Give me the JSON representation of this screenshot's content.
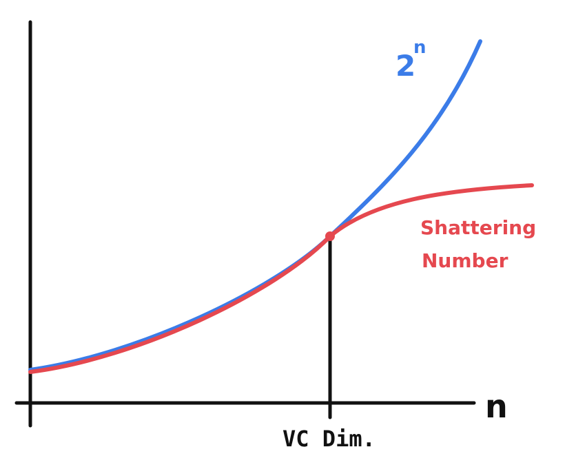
{
  "labels": {
    "x_axis": "n",
    "vc_dim": "VC Dim.",
    "exp_base": "2",
    "exp_power": "n",
    "shattering_line1": "Shattering",
    "shattering_line2": "Number"
  },
  "colors": {
    "axis": "#111111",
    "exp_curve": "#3b7ce8",
    "shattering_curve": "#e5484f"
  }
}
